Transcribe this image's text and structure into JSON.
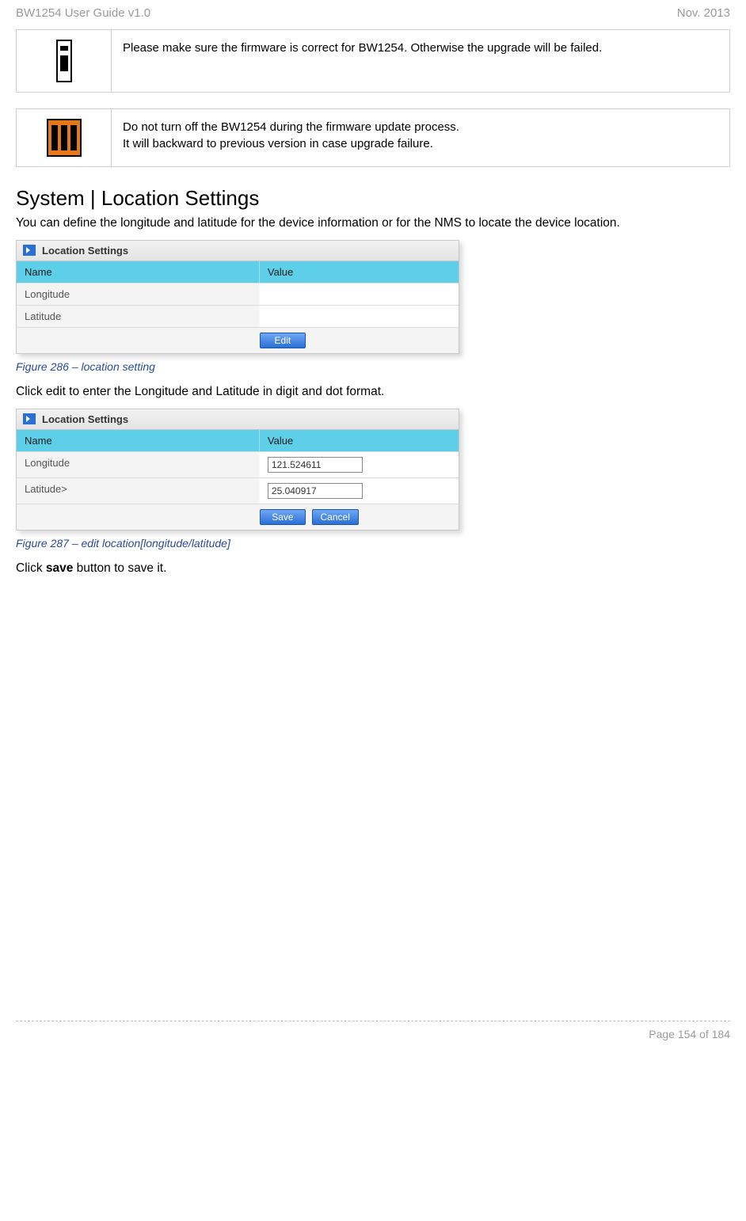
{
  "header": {
    "left": "BW1254 User Guide v1.0",
    "right": "Nov.  2013"
  },
  "notes": {
    "info_text": "Please make sure the firmware is correct for BW1254. Otherwise the upgrade will be failed.",
    "warn_line1": "Do not turn off the BW1254 during the firmware update process.",
    "warn_line2": "It will backward to previous version in case upgrade failure."
  },
  "section": {
    "title": "System | Location Settings",
    "intro": "You can define the longitude and latitude for the device information or for the NMS to locate the device location.",
    "caption1": "Figure 286 – location setting",
    "mid_text": "Click edit to enter the Longitude and Latitude in digit and dot format.",
    "caption2": "Figure 287 – edit location[longitude/latitude]",
    "save_text_prefix": "Click ",
    "save_text_bold": "save",
    "save_text_suffix": " button to save it."
  },
  "panel": {
    "title": "Location Settings",
    "col_name": "Name",
    "col_value": "Value",
    "row_longitude": "Longitude",
    "row_latitude": "Latitude",
    "row_latitude_edit": "Latitude>",
    "btn_edit": "Edit",
    "btn_save": "Save",
    "btn_cancel": "Cancel",
    "val_longitude": "121.524611",
    "val_latitude": "25.040917"
  },
  "footer": {
    "page": "Page 154 of 184"
  }
}
